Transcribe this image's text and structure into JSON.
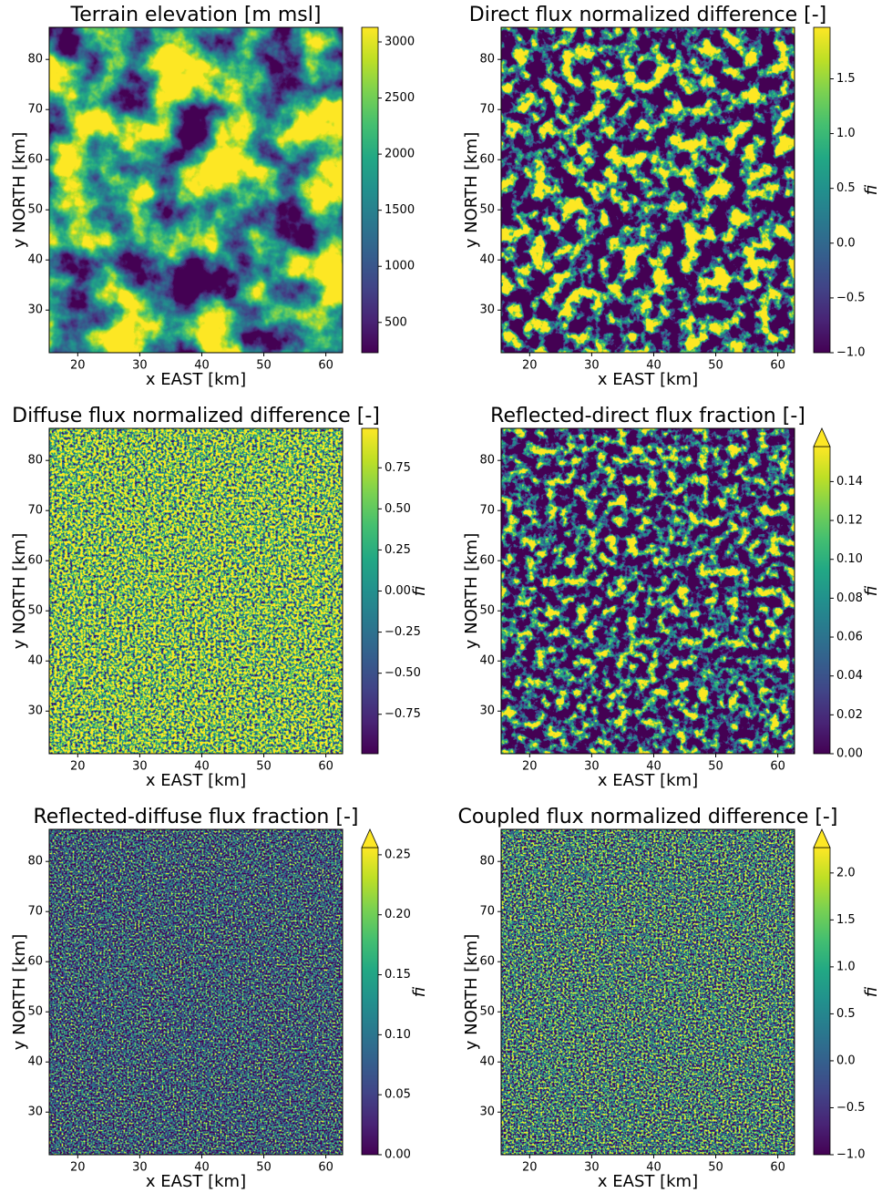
{
  "chart_data": [
    {
      "type": "heatmap",
      "title": "Terrain elevation [m msl]",
      "xlabel": "x EAST [km]",
      "ylabel": "y NORTH [km]",
      "xlim": [
        15.4,
        62.7
      ],
      "ylim": [
        21.5,
        86.4
      ],
      "xticks": [
        20,
        30,
        40,
        50,
        60
      ],
      "yticks": [
        30,
        40,
        50,
        60,
        70,
        80
      ],
      "colormap": "viridis",
      "clim": [
        230,
        3130
      ],
      "cticks": [
        500,
        1000,
        1500,
        2000,
        2500,
        3000
      ],
      "extend": "neither"
    },
    {
      "type": "heatmap",
      "title": "Direct flux normalized difference [-]",
      "xlabel": "x EAST [km]",
      "ylabel": "y NORTH [km]",
      "xlim": [
        15.4,
        62.7
      ],
      "ylim": [
        21.5,
        86.4
      ],
      "xticks": [
        20,
        30,
        40,
        50,
        60
      ],
      "yticks": [
        30,
        40,
        50,
        60,
        70,
        80
      ],
      "colormap": "viridis",
      "clim": [
        -1.0,
        1.97
      ],
      "colorbar_label": "fi",
      "cticks": [
        {
          "value": -1,
          "label": "−1.0"
        },
        {
          "value": -0.5,
          "label": "−0.5"
        },
        {
          "value": 0,
          "label": "0.0"
        },
        0.5,
        {
          "value": 1,
          "label": "1.0"
        },
        1.5
      ],
      "extend": "neither"
    },
    {
      "type": "heatmap",
      "title": "Diffuse flux normalized difference [-]",
      "xlabel": "x EAST [km]",
      "ylabel": "y NORTH [km]",
      "xlim": [
        15.4,
        62.7
      ],
      "ylim": [
        21.5,
        86.4
      ],
      "xticks": [
        20,
        30,
        40,
        50,
        60
      ],
      "yticks": [
        30,
        40,
        50,
        60,
        70,
        80
      ],
      "colormap": "viridis",
      "clim": [
        -0.99,
        0.99
      ],
      "colorbar_label": "fi",
      "cticks": [
        {
          "value": -0.75,
          "label": "−0.75"
        },
        {
          "value": -0.5,
          "label": "−0.50"
        },
        {
          "value": -0.25,
          "label": "−0.25"
        },
        {
          "value": 0,
          "label": "0.00"
        },
        0.25,
        {
          "value": 0.5,
          "label": "0.50"
        },
        0.75
      ],
      "extend": "neither"
    },
    {
      "type": "heatmap",
      "title": "Reflected-direct flux fraction [-]",
      "xlabel": "x EAST [km]",
      "ylabel": "y NORTH [km]",
      "xlim": [
        15.4,
        62.7
      ],
      "ylim": [
        21.5,
        86.4
      ],
      "xticks": [
        20,
        30,
        40,
        50,
        60
      ],
      "yticks": [
        30,
        40,
        50,
        60,
        70,
        80
      ],
      "colormap": "viridis",
      "clim": [
        0,
        0.158
      ],
      "colorbar_label": "fi",
      "cticks": [
        {
          "value": 0,
          "label": "0.00"
        },
        0.02,
        0.04,
        0.06,
        0.08,
        {
          "value": 0.1,
          "label": "0.10"
        },
        0.12,
        0.14
      ],
      "extend": "max"
    },
    {
      "type": "heatmap",
      "title": "Reflected-diffuse flux fraction [-]",
      "xlabel": "x EAST [km]",
      "ylabel": "y NORTH [km]",
      "xlim": [
        15.4,
        62.7
      ],
      "ylim": [
        21.5,
        86.4
      ],
      "xticks": [
        20,
        30,
        40,
        50,
        60
      ],
      "yticks": [
        30,
        40,
        50,
        60,
        70,
        80
      ],
      "colormap": "viridis",
      "clim": [
        0,
        0.256
      ],
      "colorbar_label": "fi",
      "cticks": [
        {
          "value": 0,
          "label": "0.00"
        },
        0.05,
        {
          "value": 0.1,
          "label": "0.10"
        },
        0.15,
        {
          "value": 0.2,
          "label": "0.20"
        },
        0.25
      ],
      "extend": "max"
    },
    {
      "type": "heatmap",
      "title": "Coupled flux normalized difference [-]",
      "xlabel": "x EAST [km]",
      "ylabel": "y NORTH [km]",
      "xlim": [
        15.4,
        62.7
      ],
      "ylim": [
        21.5,
        86.4
      ],
      "xticks": [
        20,
        30,
        40,
        50,
        60
      ],
      "yticks": [
        30,
        40,
        50,
        60,
        70,
        80
      ],
      "colormap": "viridis",
      "clim": [
        -1.0,
        2.27
      ],
      "colorbar_label": "fi",
      "cticks": [
        {
          "value": -1,
          "label": "−1.0"
        },
        {
          "value": -0.5,
          "label": "−0.5"
        },
        {
          "value": 0,
          "label": "0.0"
        },
        0.5,
        {
          "value": 1,
          "label": "1.0"
        },
        1.5,
        {
          "value": 2,
          "label": "2.0"
        }
      ],
      "extend": "max"
    }
  ]
}
